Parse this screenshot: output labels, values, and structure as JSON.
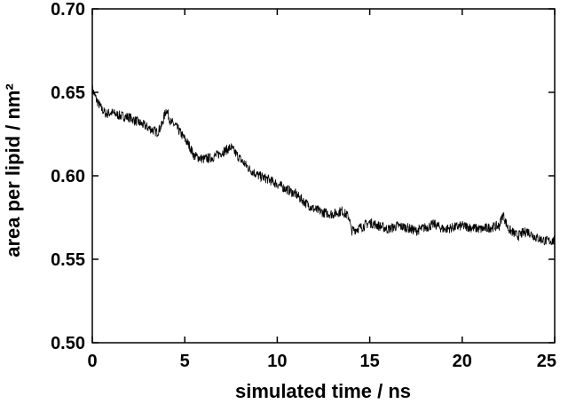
{
  "chart_data": {
    "type": "line",
    "xlabel": "simulated time / ns",
    "ylabel": "area per lipid / nm²",
    "xlim": [
      0,
      25
    ],
    "ylim": [
      0.5,
      0.7
    ],
    "xticks": [
      "0",
      "5",
      "10",
      "15",
      "20",
      "25"
    ],
    "yticks": [
      "0.50",
      "0.55",
      "0.60",
      "0.65",
      "0.70"
    ],
    "grid": false,
    "legend": "none",
    "series": [
      {
        "color": "#000000",
        "x": [
          0,
          0.25,
          0.5,
          0.75,
          1.0,
          1.5,
          2.0,
          2.5,
          3.0,
          3.5,
          3.75,
          4.0,
          4.25,
          4.5,
          5.0,
          5.25,
          5.5,
          6.0,
          6.5,
          7.0,
          7.5,
          8.0,
          8.5,
          9.0,
          9.5,
          10.0,
          10.5,
          11.0,
          11.5,
          12.0,
          12.5,
          13.0,
          13.5,
          13.9,
          14.0,
          14.5,
          15.0,
          15.5,
          16.0,
          16.5,
          17.0,
          17.5,
          18.0,
          18.5,
          19.0,
          19.5,
          20.0,
          20.5,
          21.0,
          21.5,
          22.0,
          22.2,
          22.5,
          23.0,
          23.5,
          24.0,
          24.5,
          25.0
        ],
        "y": [
          0.652,
          0.645,
          0.64,
          0.637,
          0.638,
          0.636,
          0.635,
          0.632,
          0.629,
          0.626,
          0.63,
          0.64,
          0.632,
          0.63,
          0.622,
          0.618,
          0.612,
          0.61,
          0.611,
          0.614,
          0.617,
          0.61,
          0.604,
          0.6,
          0.598,
          0.595,
          0.592,
          0.589,
          0.584,
          0.58,
          0.578,
          0.577,
          0.579,
          0.575,
          0.567,
          0.569,
          0.572,
          0.57,
          0.568,
          0.57,
          0.569,
          0.567,
          0.569,
          0.571,
          0.568,
          0.569,
          0.57,
          0.569,
          0.568,
          0.569,
          0.57,
          0.577,
          0.568,
          0.564,
          0.567,
          0.563,
          0.561,
          0.561
        ]
      }
    ]
  }
}
